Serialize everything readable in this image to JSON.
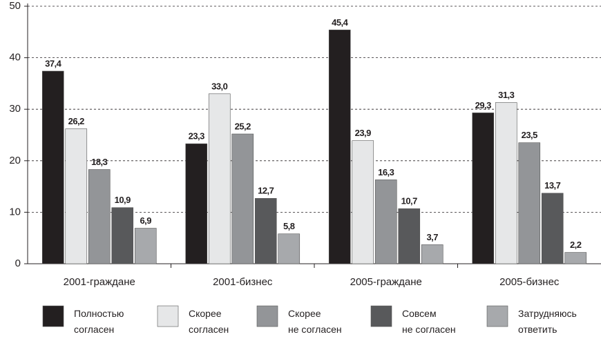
{
  "chart_data": {
    "type": "bar",
    "categories": [
      "2001-граждане",
      "2001-бизнес",
      "2005-граждане",
      "2005-бизнес"
    ],
    "series": [
      {
        "name": "Полностью согласен",
        "color": "#231f20",
        "values": [
          37.4,
          23.3,
          45.4,
          29.3
        ],
        "value_labels": [
          "37,4",
          "23,3",
          "45,4",
          "29,3"
        ]
      },
      {
        "name": "Скорее согласен",
        "color": "#e6e7e8",
        "values": [
          26.2,
          33.0,
          23.9,
          31.3
        ],
        "value_labels": [
          "26,2",
          "33,0",
          "23,9",
          "31,3"
        ]
      },
      {
        "name": "Скорее не согласен",
        "color": "#939598",
        "values": [
          18.3,
          25.2,
          16.3,
          23.5
        ],
        "value_labels": [
          "18,3",
          "25,2",
          "16,3",
          "23,5"
        ]
      },
      {
        "name": "Совсем не согласен",
        "color": "#58595b",
        "values": [
          10.9,
          12.7,
          10.7,
          13.7
        ],
        "value_labels": [
          "10,9",
          "12,7",
          "10,7",
          "13,7"
        ]
      },
      {
        "name": "Затрудняюсь ответить",
        "color": "#a7a9ac",
        "values": [
          6.9,
          5.8,
          3.7,
          2.2
        ],
        "value_labels": [
          "6,9",
          "5,8",
          "3,7",
          "2,2"
        ]
      }
    ],
    "ylim": [
      0,
      50
    ],
    "yticks": [
      0,
      10,
      20,
      30,
      40,
      50
    ],
    "grid": true,
    "legend": "bottom"
  }
}
